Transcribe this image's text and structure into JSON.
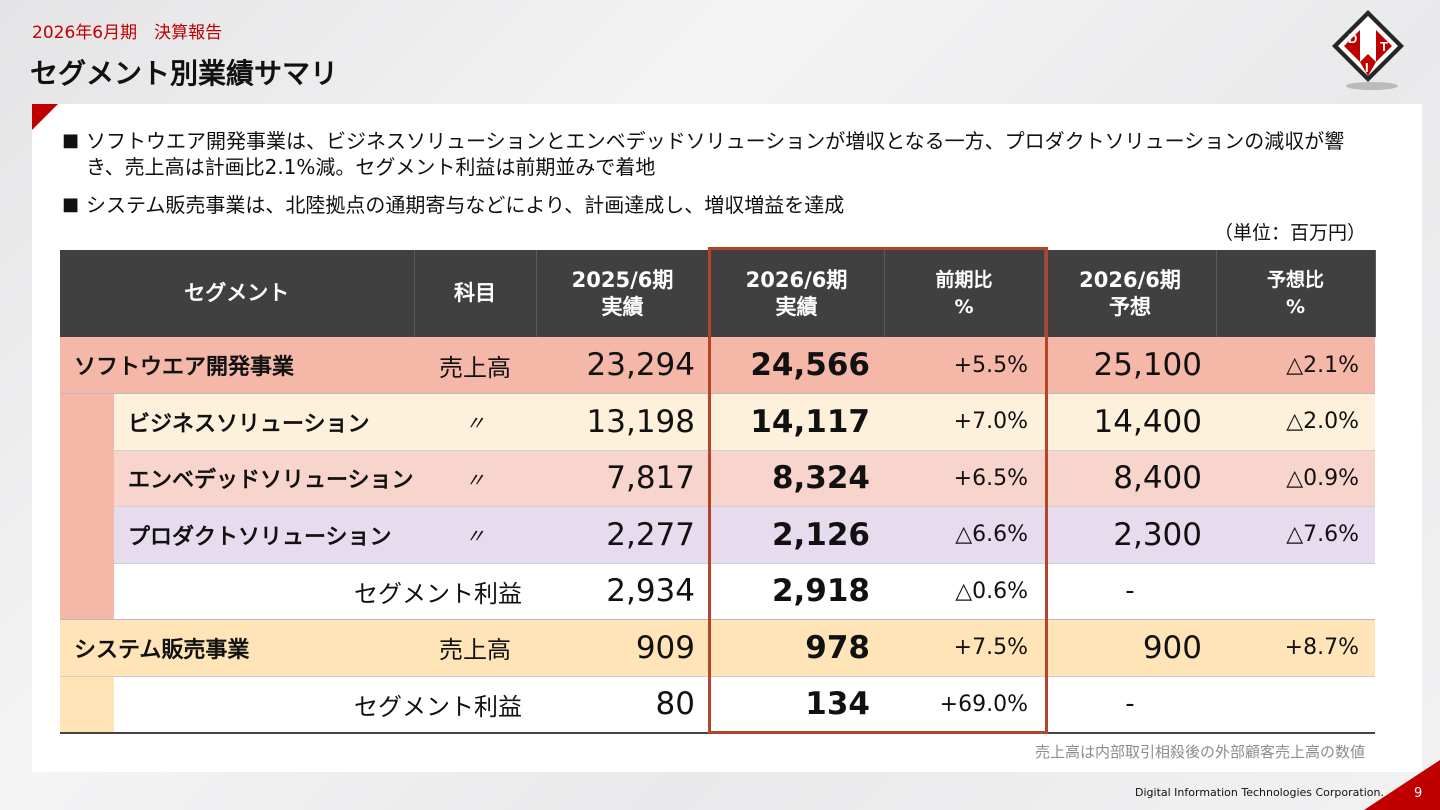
{
  "header": {
    "subtitle": "2026年6月期　決算報告",
    "title": "セグメント別業績サマリ"
  },
  "logo": {
    "letters": [
      "D",
      "I",
      "T"
    ],
    "colors": {
      "red": "#c00000",
      "dark": "#262626"
    }
  },
  "bullets": [
    "ソフトウエア開発事業は、ビジネスソリューションとエンベデッドソリューションが増収となる一方、プロダクトソリューションの減収が響き、売上高は計画比2.1%減。セグメント利益は前期並みで着地",
    "システム販売事業は、北陸拠点の通期寄与などにより、計画達成し、増収増益を達成"
  ],
  "bullet_mark": "■",
  "unit": "（単位：百万円）",
  "table": {
    "headers": {
      "segment": "セグメント",
      "item": "科目",
      "prev": [
        "2025/6期",
        "実績"
      ],
      "curr": [
        "2026/6期",
        "実績"
      ],
      "yoy": [
        "前期比",
        "%"
      ],
      "plan": [
        "2026/6期",
        "予想"
      ],
      "vs_plan": [
        "予想比",
        "%"
      ]
    },
    "rows": [
      {
        "segment": "ソフトウエア開発事業",
        "item": "売上高",
        "prev": "23,294",
        "curr": "24,566",
        "yoy": "+5.5%",
        "plan": "25,100",
        "vs_plan": "△2.1%"
      },
      {
        "segment": "ビジネスソリューション",
        "item": "〃",
        "prev": "13,198",
        "curr": "14,117",
        "yoy": "+7.0%",
        "plan": "14,400",
        "vs_plan": "△2.0%"
      },
      {
        "segment": "エンベデッドソリューション",
        "item": "〃",
        "prev": "7,817",
        "curr": "8,324",
        "yoy": "+6.5%",
        "plan": "8,400",
        "vs_plan": "△0.9%"
      },
      {
        "segment": "プロダクトソリューション",
        "item": "〃",
        "prev": "2,277",
        "curr": "2,126",
        "yoy": "△6.6%",
        "plan": "2,300",
        "vs_plan": "△7.6%"
      },
      {
        "item": "セグメント利益",
        "prev": "2,934",
        "curr": "2,918",
        "yoy": "△0.6%",
        "plan": "-",
        "vs_plan": ""
      },
      {
        "segment": "システム販売事業",
        "item": "売上高",
        "prev": "909",
        "curr": "978",
        "yoy": "+7.5%",
        "plan": "900",
        "vs_plan": "+8.7%"
      },
      {
        "item": "セグメント利益",
        "prev": "80",
        "curr": "134",
        "yoy": "+69.0%",
        "plan": "-",
        "vs_plan": ""
      }
    ]
  },
  "footnote": "売上高は内部取引相殺後の外部顧客売上高の数値",
  "footer": {
    "company": "Digital Information Technologies Corporation.",
    "page": "9"
  }
}
